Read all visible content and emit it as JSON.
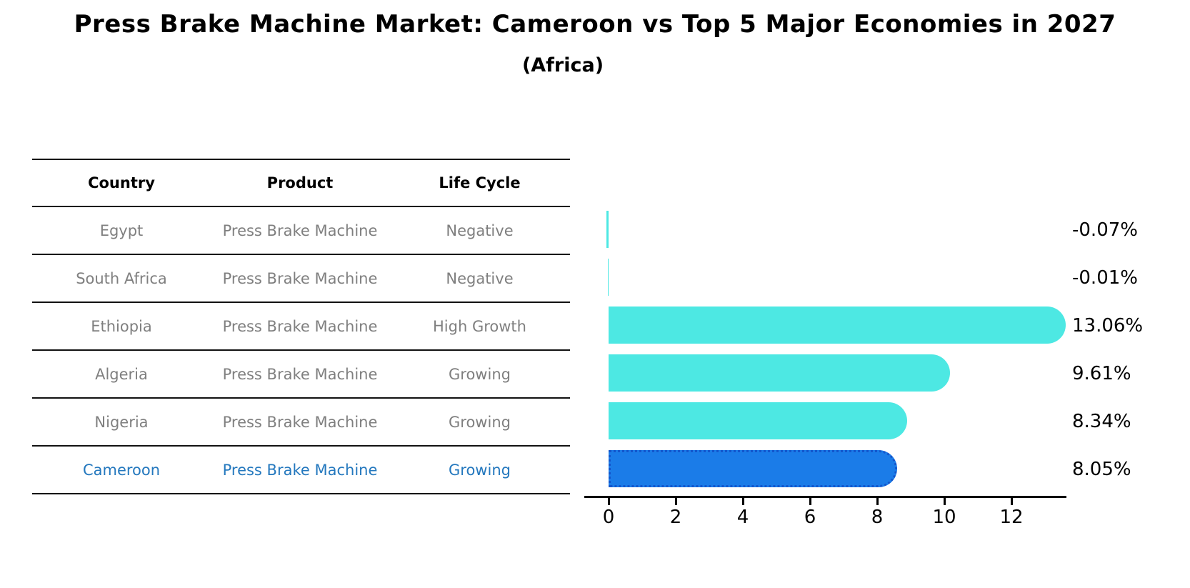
{
  "title": "Press Brake Machine Market: Cameroon vs Top 5 Major Economies in 2027",
  "subtitle": "(Africa)",
  "table": {
    "headers": [
      "Country",
      "Product",
      "Life Cycle"
    ],
    "rows": [
      {
        "country": "Egypt",
        "product": "Press Brake Machine",
        "life_cycle": "Negative",
        "highlight": false
      },
      {
        "country": "South Africa",
        "product": "Press Brake Machine",
        "life_cycle": "Negative",
        "highlight": false
      },
      {
        "country": "Ethiopia",
        "product": "Press Brake Machine",
        "life_cycle": "High Growth",
        "highlight": false
      },
      {
        "country": "Algeria",
        "product": "Press Brake Machine",
        "life_cycle": "Growing",
        "highlight": false
      },
      {
        "country": "Nigeria",
        "product": "Press Brake Machine",
        "life_cycle": "Growing",
        "highlight": true
      }
    ],
    "highlight_row": {
      "country": "Cameroon",
      "product": "Press Brake Machine",
      "life_cycle": "Growing"
    }
  },
  "chart_data": {
    "type": "bar",
    "orientation": "horizontal",
    "title": "Press Brake Machine Market: Cameroon vs Top 5 Major Economies in 2027",
    "subtitle": "(Africa)",
    "categories": [
      "Egypt",
      "South Africa",
      "Ethiopia",
      "Algeria",
      "Nigeria",
      "Cameroon"
    ],
    "values": [
      -0.07,
      -0.01,
      13.06,
      9.61,
      8.34,
      8.05
    ],
    "value_labels": [
      "-0.07%",
      "-0.01%",
      "13.06%",
      "9.61%",
      "8.34%",
      "8.05%"
    ],
    "xticks": [
      0,
      2,
      4,
      6,
      8,
      10,
      12
    ],
    "xtick_labels": [
      "0",
      "2",
      "4",
      "6",
      "8",
      "10",
      "12"
    ],
    "xlim": [
      -0.72,
      13.64
    ],
    "grid": false,
    "legend": null,
    "bar_color": "#4de8e3",
    "highlight_index": 5,
    "highlight_bar_color": "#1b7ce8",
    "highlight_border_color": "#1356cc",
    "row_text_color": "#7f7f7f",
    "highlight_text_color": "#2478be"
  }
}
